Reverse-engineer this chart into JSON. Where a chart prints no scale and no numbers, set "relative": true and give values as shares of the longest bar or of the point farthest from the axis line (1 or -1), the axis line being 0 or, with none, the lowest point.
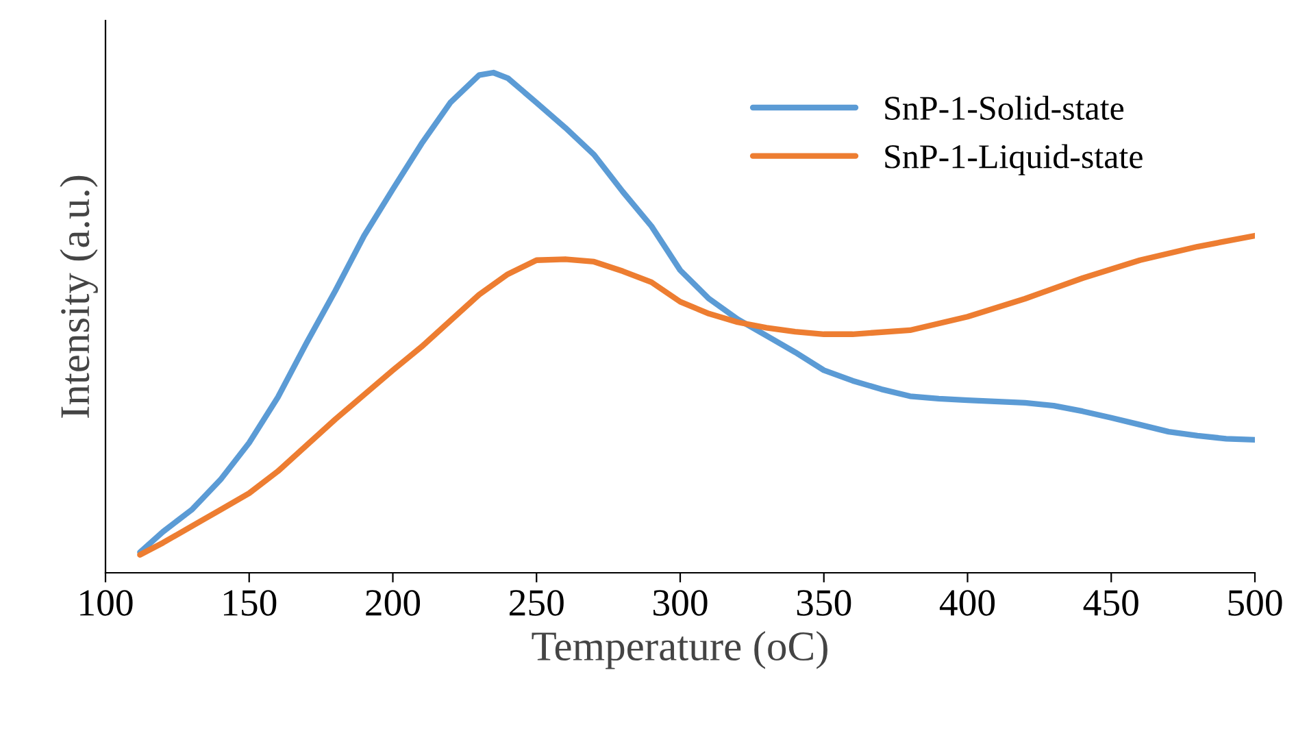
{
  "chart_data": {
    "type": "line",
    "xlabel": "Temperature (oC)",
    "ylabel": "Intensity (a.u.)",
    "relative": true,
    "xlim": [
      100,
      500
    ],
    "xticks": [
      100,
      150,
      200,
      250,
      300,
      350,
      400,
      450,
      500
    ],
    "grid": false,
    "legend": "top right",
    "marker": "none",
    "line_style": "solid",
    "series": [
      {
        "name": "SnP-1-Solid-state",
        "color": "#5b9bd5",
        "x": [
          112,
          120,
          130,
          140,
          150,
          160,
          170,
          180,
          190,
          200,
          210,
          220,
          230,
          235,
          240,
          250,
          260,
          270,
          280,
          290,
          300,
          310,
          320,
          330,
          340,
          350,
          360,
          370,
          380,
          390,
          400,
          420,
          430,
          440,
          450,
          460,
          470,
          480,
          490,
          500
        ],
        "values": [
          0.041,
          0.082,
          0.126,
          0.186,
          0.26,
          0.351,
          0.46,
          0.564,
          0.674,
          0.767,
          0.858,
          0.94,
          0.995,
          1.0,
          0.989,
          0.94,
          0.89,
          0.836,
          0.762,
          0.693,
          0.605,
          0.548,
          0.507,
          0.474,
          0.441,
          0.405,
          0.384,
          0.367,
          0.353,
          0.348,
          0.345,
          0.34,
          0.334,
          0.323,
          0.31,
          0.296,
          0.282,
          0.274,
          0.268,
          0.266
        ]
      },
      {
        "name": "SnP-1-Liquid-state",
        "color": "#ed7d31",
        "x": [
          112,
          120,
          130,
          140,
          150,
          160,
          170,
          180,
          190,
          200,
          210,
          220,
          230,
          240,
          250,
          260,
          270,
          280,
          290,
          300,
          310,
          320,
          330,
          340,
          350,
          360,
          380,
          400,
          420,
          440,
          460,
          480,
          500
        ],
        "values": [
          0.036,
          0.06,
          0.093,
          0.126,
          0.159,
          0.203,
          0.255,
          0.307,
          0.356,
          0.405,
          0.452,
          0.504,
          0.556,
          0.597,
          0.625,
          0.627,
          0.622,
          0.603,
          0.581,
          0.542,
          0.518,
          0.501,
          0.49,
          0.482,
          0.477,
          0.477,
          0.485,
          0.512,
          0.548,
          0.589,
          0.625,
          0.652,
          0.674
        ]
      }
    ]
  }
}
